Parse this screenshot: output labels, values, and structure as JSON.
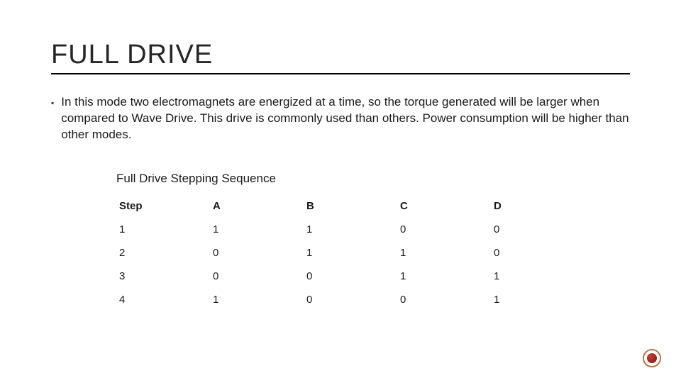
{
  "title": "FULL DRIVE",
  "bullet_marker": "▪",
  "bullet_text": "In this mode two electromagnets are energized at a time, so the torque generated will be larger when compared to Wave Drive. This drive is commonly used than others. Power consumption will be higher than other modes.",
  "table": {
    "title": "Full Drive Stepping Sequence",
    "columns": [
      "Step",
      "A",
      "B",
      "C",
      "D"
    ],
    "rows": [
      [
        "1",
        "1",
        "1",
        "0",
        "0"
      ],
      [
        "2",
        "0",
        "1",
        "1",
        "0"
      ],
      [
        "3",
        "0",
        "0",
        "1",
        "1"
      ],
      [
        "4",
        "1",
        "0",
        "0",
        "1"
      ]
    ],
    "header_fontweight": 700,
    "cell_fontsize": 15
  },
  "styles": {
    "background": "#ffffff",
    "text_color": "#1a1a1a",
    "title_fontsize": 38,
    "body_fontsize": 17,
    "rule_color": "#000000",
    "deco_ring_color": "#b07a4a",
    "deco_core_color": "#d23a2a"
  }
}
